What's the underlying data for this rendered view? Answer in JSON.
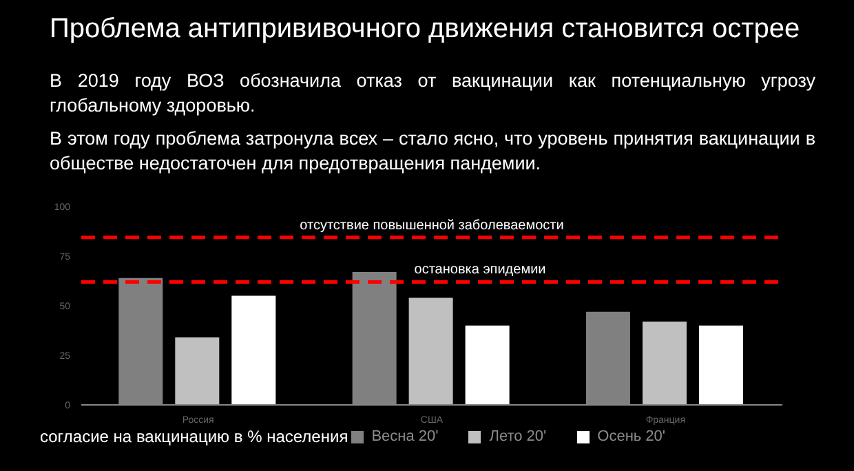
{
  "chart_data": {
    "type": "bar",
    "title": "Проблема антипрививочного движения становится острее",
    "subtitle": "В 2019 году ВОЗ обозначила отказ от вакцинации как потенциальную угрозу глобальному здоровью.",
    "annotations": [
      "В этом году проблема затронула всех – стало ясно, что уровень принятия вакцинации в обществе недостаточен для предотвращения пандемии."
    ],
    "categories": [
      "Россия",
      "США",
      "Франция"
    ],
    "series": [
      {
        "name": "Весна 20'",
        "color": "#808080",
        "values": [
          64,
          67,
          47
        ]
      },
      {
        "name": "Лето 20'",
        "color": "#c0c0c0",
        "values": [
          34,
          54,
          42
        ]
      },
      {
        "name": "Осень 20'",
        "color": "#ffffff",
        "values": [
          55,
          40,
          40
        ]
      }
    ],
    "ylim": [
      0,
      100
    ],
    "yticks": [
      0,
      25,
      50,
      75,
      100
    ],
    "grid": false,
    "legend": "bottom",
    "legend_title": "согласие на вакцинацию в % населения",
    "ref_lines": [
      {
        "axis": "y",
        "value": 84.5,
        "label": "отсутствие повышенной заболеваемости",
        "color": "#ff0000",
        "line_style": "dashed"
      },
      {
        "axis": "y",
        "value": 62,
        "label": "остановка эпидемии",
        "color": "#ff0000",
        "line_style": "dashed"
      }
    ]
  }
}
